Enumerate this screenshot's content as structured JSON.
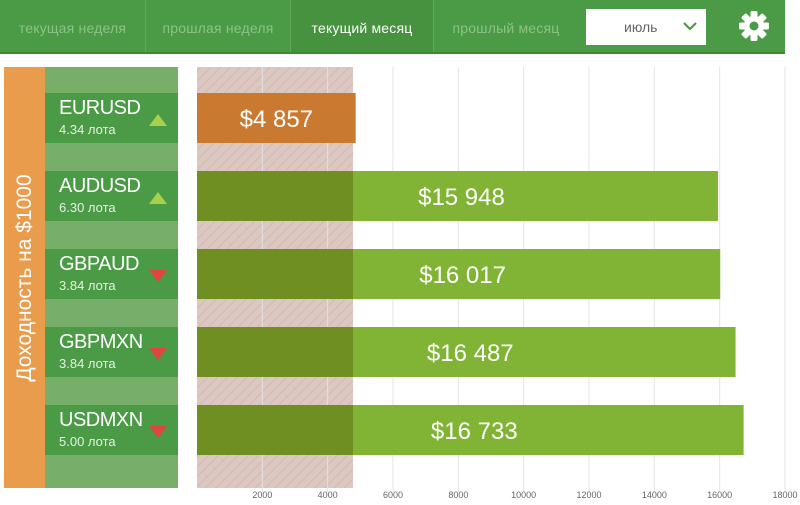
{
  "tabs": [
    {
      "label": "текущая неделя",
      "active": false
    },
    {
      "label": "прошлая неделя",
      "active": false
    },
    {
      "label": "текущий месяц",
      "active": true
    },
    {
      "label": "прошлый месяц",
      "active": false
    }
  ],
  "month_select": {
    "value": "июль"
  },
  "colors": {
    "nav_green": "#4b9a45",
    "bar_green": "#81b434",
    "bar_orange": "#c97a30",
    "label_orange": "#e89c4c"
  },
  "instruments": [
    {
      "name": "EURUSD",
      "lots": "4.34 лота",
      "trend": "up"
    },
    {
      "name": "AUDUSD",
      "lots": "6.30 лота",
      "trend": "up"
    },
    {
      "name": "GBPAUD",
      "lots": "3.84 лота",
      "trend": "down"
    },
    {
      "name": "GBPMXN",
      "lots": "3.84 лота",
      "trend": "down"
    },
    {
      "name": "USDMXN",
      "lots": "5.00 лота",
      "trend": "down"
    }
  ],
  "chart_data": {
    "type": "bar",
    "orientation": "horizontal",
    "ylabel": "Доходность на $1000",
    "categories": [
      "EURUSD",
      "AUDUSD",
      "GBPAUD",
      "GBPMXN",
      "USDMXN"
    ],
    "values": [
      4857,
      15948,
      16017,
      16487,
      16733
    ],
    "value_labels": [
      "$4 857",
      "$15 948",
      "$16 017",
      "$16 487",
      "$16 733"
    ],
    "xticks": [
      2000,
      4000,
      6000,
      8000,
      10000,
      12000,
      14000,
      16000,
      18000
    ],
    "xlim": [
      0,
      18000
    ],
    "grid": true
  }
}
